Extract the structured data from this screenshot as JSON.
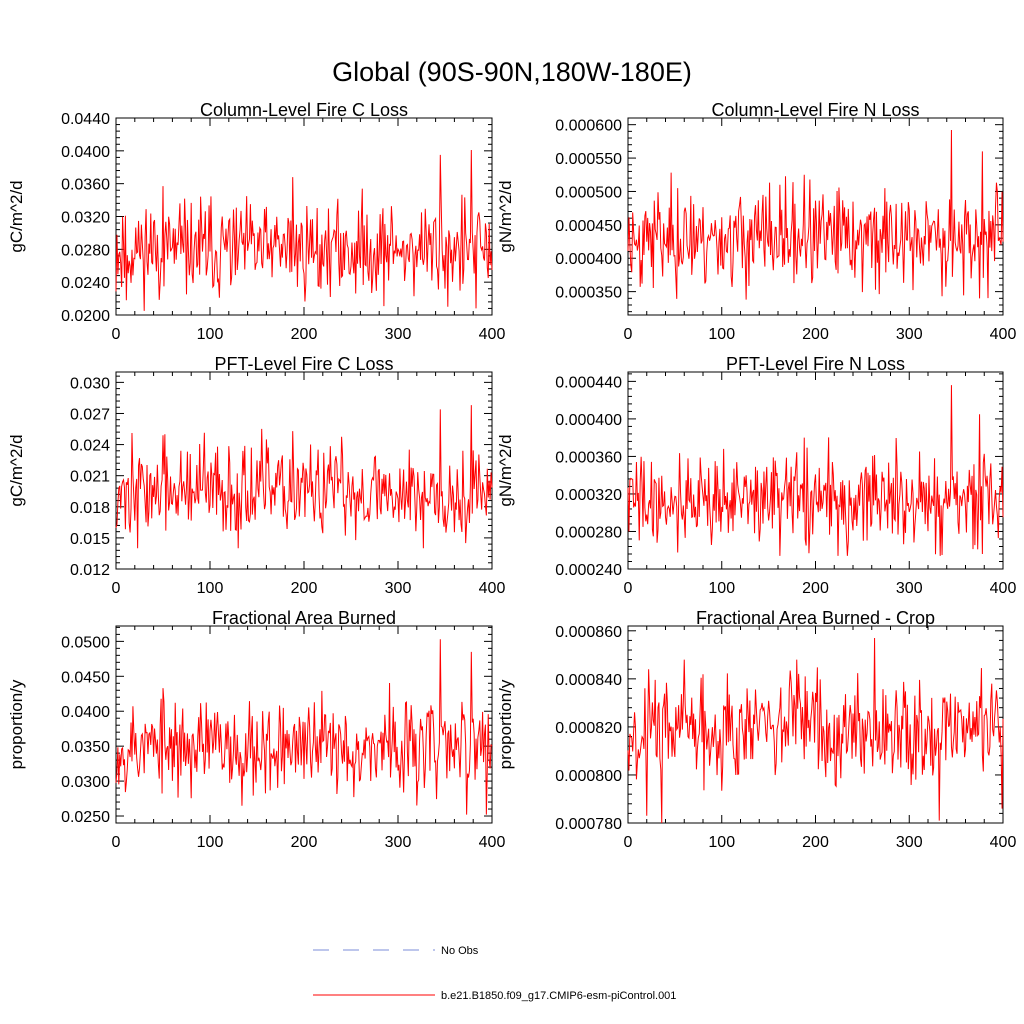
{
  "figure": {
    "title": "Global (90S-90N,180W-180E)",
    "series_color": "#ff0000",
    "obs_color": "#7b8ed8"
  },
  "legend": {
    "obs_label": "No Obs",
    "model_label": "b.e21.B1850.f09_g17.CMIP6-esm-piControl.001"
  },
  "chart_data": [
    {
      "type": "line",
      "title": "Column-Level Fire C Loss",
      "xlabel": "",
      "ylabel": "gC/m^2/d",
      "xlim": [
        0,
        400
      ],
      "ylim": [
        0.02,
        0.044
      ],
      "xticks": [
        "0",
        "100",
        "200",
        "300",
        "400"
      ],
      "yticks": [
        "0.0200",
        "0.0240",
        "0.0280",
        "0.0320",
        "0.0360",
        "0.0400",
        "0.0440"
      ],
      "series": [
        {
          "name": "b.e21.B1850.f09_g17.CMIP6-esm-piControl.001",
          "mean": 0.028,
          "sd": 0.0028,
          "min": 0.0205,
          "max": 0.0402,
          "seed": 11,
          "spikes": [
            [
              11,
              0.0218
            ],
            [
              50,
              0.0357
            ],
            [
              188,
              0.0368
            ],
            [
              345,
              0.0395
            ],
            [
              353,
              0.021
            ],
            [
              378,
              0.0401
            ],
            [
              383,
              0.0208
            ]
          ]
        }
      ]
    },
    {
      "type": "line",
      "title": "Column-Level Fire N Loss",
      "xlabel": "",
      "ylabel": "gN/m^2/d",
      "xlim": [
        0,
        400
      ],
      "ylim": [
        0.000315,
        0.00061
      ],
      "xticks": [
        "0",
        "100",
        "200",
        "300",
        "400"
      ],
      "yticks": [
        "0.000350",
        "0.000400",
        "0.000450",
        "0.000500",
        "0.000550",
        "0.000600"
      ],
      "series": [
        {
          "name": "b.e21.B1850.f09_g17.CMIP6-esm-piControl.001",
          "mean": 0.00043,
          "sd": 3.6e-05,
          "min": 0.000338,
          "max": 0.000592,
          "seed": 23,
          "spikes": [
            [
              53,
              0.000505
            ],
            [
              188,
              0.000525
            ],
            [
              345,
              0.000592
            ],
            [
              335,
              0.000343
            ],
            [
              378,
              0.00056
            ],
            [
              375,
              0.00034
            ]
          ]
        }
      ]
    },
    {
      "type": "line",
      "title": "PFT-Level Fire C Loss",
      "xlabel": "",
      "ylabel": "gC/m^2/d",
      "xlim": [
        0,
        400
      ],
      "ylim": [
        0.012,
        0.031
      ],
      "xticks": [
        "0",
        "100",
        "200",
        "300",
        "400"
      ],
      "yticks": [
        "0.012",
        "0.015",
        "0.018",
        "0.021",
        "0.024",
        "0.027",
        "0.030"
      ],
      "series": [
        {
          "name": "b.e21.B1850.f09_g17.CMIP6-esm-piControl.001",
          "mean": 0.0195,
          "sd": 0.0022,
          "min": 0.014,
          "max": 0.0279,
          "seed": 37,
          "spikes": [
            [
              50,
              0.0249
            ],
            [
              188,
              0.0253
            ],
            [
              345,
              0.0274
            ],
            [
              327,
              0.014
            ],
            [
              378,
              0.0278
            ],
            [
              372,
              0.0145
            ]
          ]
        }
      ]
    },
    {
      "type": "line",
      "title": "PFT-Level Fire N Loss",
      "xlabel": "",
      "ylabel": "gN/m^2/d",
      "xlim": [
        0,
        400
      ],
      "ylim": [
        0.00024,
        0.00045
      ],
      "xticks": [
        "0",
        "100",
        "200",
        "300",
        "400"
      ],
      "yticks": [
        "0.000240",
        "0.000280",
        "0.000320",
        "0.000360",
        "0.000400",
        "0.000440"
      ],
      "series": [
        {
          "name": "b.e21.B1850.f09_g17.CMIP6-esm-piControl.001",
          "mean": 0.000313,
          "sd": 2.4e-05,
          "min": 0.000254,
          "max": 0.000436,
          "seed": 41,
          "spikes": [
            [
              102,
              0.000368
            ],
            [
              188,
              0.00038
            ],
            [
              345,
              0.000436
            ],
            [
              335,
              0.000255
            ],
            [
              375,
              0.000405
            ],
            [
              378,
              0.000256
            ]
          ]
        }
      ]
    },
    {
      "type": "line",
      "title": "Fractional Area Burned",
      "xlabel": "",
      "ylabel": "proportion/y",
      "xlim": [
        0,
        400
      ],
      "ylim": [
        0.024,
        0.0522
      ],
      "xticks": [
        "0",
        "100",
        "200",
        "300",
        "400"
      ],
      "yticks": [
        "0.0250",
        "0.0300",
        "0.0350",
        "0.0400",
        "0.0450",
        "0.0500"
      ],
      "series": [
        {
          "name": "b.e21.B1850.f09_g17.CMIP6-esm-piControl.001",
          "mean": 0.035,
          "sd": 0.0033,
          "min": 0.0252,
          "max": 0.0503,
          "seed": 53,
          "spikes": [
            [
              50,
              0.0433
            ],
            [
              345,
              0.0503
            ],
            [
              320,
              0.0265
            ],
            [
              378,
              0.0485
            ],
            [
              373,
              0.0252
            ]
          ]
        }
      ]
    },
    {
      "type": "line",
      "title": "Fractional Area Burned - Crop",
      "xlabel": "",
      "ylabel": "proportion/y",
      "xlim": [
        0,
        400
      ],
      "ylim": [
        0.00078,
        0.000862
      ],
      "xticks": [
        "0",
        "100",
        "200",
        "300",
        "400"
      ],
      "yticks": [
        "0.000780",
        "0.000800",
        "0.000820",
        "0.000840",
        "0.000860"
      ],
      "series": [
        {
          "name": "b.e21.B1850.f09_g17.CMIP6-esm-piControl.001",
          "mean": 0.00082,
          "sd": 1.05e-05,
          "min": 0.00078,
          "max": 0.000857,
          "seed": 67,
          "spikes": [
            [
              20,
              0.000783
            ],
            [
              36,
              0.00078
            ],
            [
              60,
              0.000848
            ],
            [
              180,
              0.000848
            ],
            [
              263,
              0.000857
            ],
            [
              332,
              0.000781
            ],
            [
              399,
              0.000786
            ]
          ]
        }
      ]
    }
  ]
}
